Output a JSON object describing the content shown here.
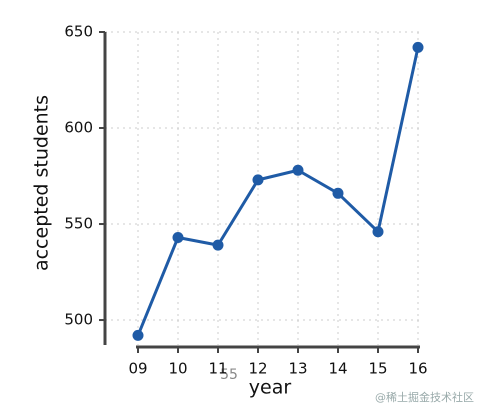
{
  "chart_data": {
    "type": "line",
    "categories": [
      "09",
      "10",
      "11",
      "12",
      "13",
      "14",
      "15",
      "16"
    ],
    "series": [
      {
        "name": "accepted students",
        "color": "#1f5ba6",
        "values": [
          492,
          543,
          539,
          573,
          578,
          566,
          546,
          642
        ]
      }
    ],
    "ylabel": "accepted students",
    "xlabel": "year",
    "ylim": [
      487,
      650
    ],
    "yticks": [
      500,
      550,
      600,
      650
    ],
    "grid": true,
    "annotation": "55",
    "watermark": "@稀土掘金技术社区"
  }
}
